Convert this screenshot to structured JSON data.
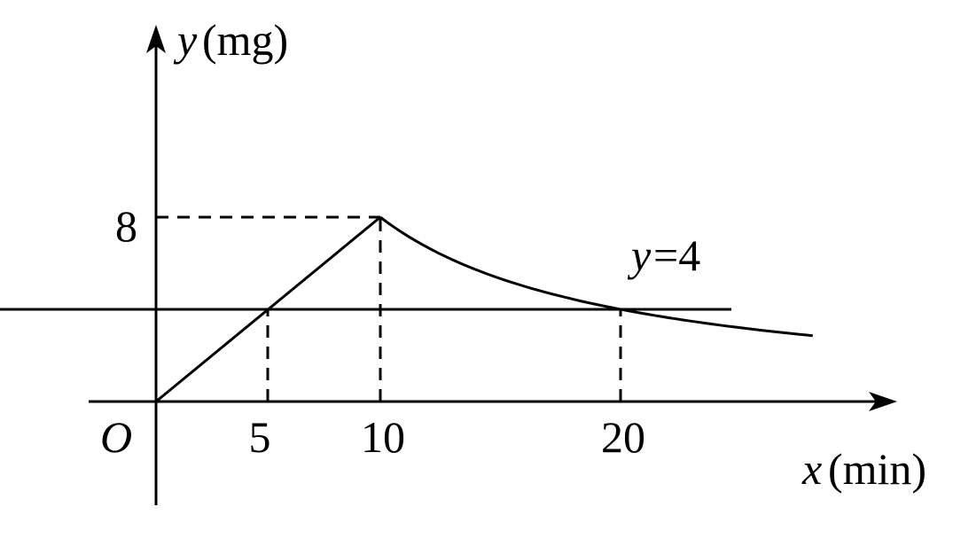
{
  "chart_data": {
    "type": "line",
    "xlabel_var": "x",
    "xlabel_unit": "(min)",
    "ylabel_var": "y",
    "ylabel_unit": "(mg)",
    "origin_label": "O",
    "x_ticks": [
      {
        "value": 5,
        "label": "5"
      },
      {
        "value": 10,
        "label": "10"
      },
      {
        "value": 20,
        "label": "20"
      }
    ],
    "y_ticks": [
      {
        "value": 8,
        "label": "8"
      }
    ],
    "series": [
      {
        "segment": "linear",
        "points": [
          [
            0,
            0
          ],
          [
            10,
            8
          ]
        ]
      },
      {
        "segment": "inverse",
        "formula": "y=80/x",
        "x_range": [
          10,
          28
        ]
      }
    ],
    "reference_line": {
      "value": 4,
      "label_var": "y",
      "label_rest": "=4"
    },
    "dashed_guides": [
      {
        "x": 5,
        "y": 4
      },
      {
        "x": 10,
        "y": 8
      },
      {
        "x": 20,
        "y": 4
      }
    ],
    "colors": {
      "stroke": "#000000"
    }
  }
}
